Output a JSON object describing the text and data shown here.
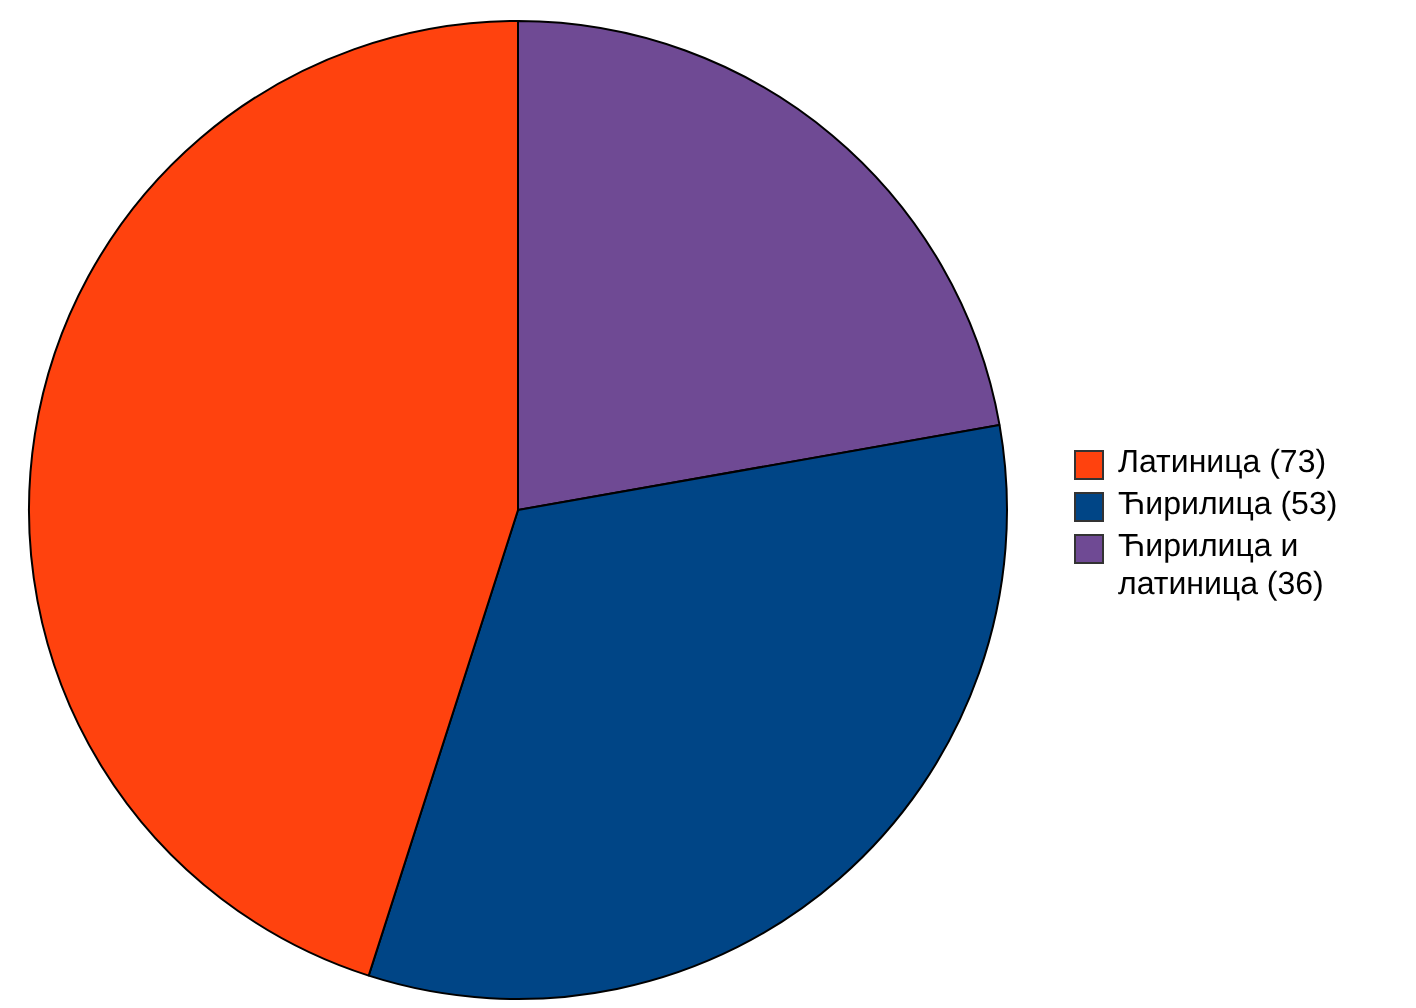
{
  "chart_data": {
    "type": "pie",
    "categories": [
      "Латиница (73)",
      "Ћирилица (53)",
      "Ћирилица и латиница (36)"
    ],
    "values": [
      73,
      53,
      36
    ],
    "colors": [
      "#ff420e",
      "#004586",
      "#6f4a94"
    ],
    "legend": "right"
  }
}
